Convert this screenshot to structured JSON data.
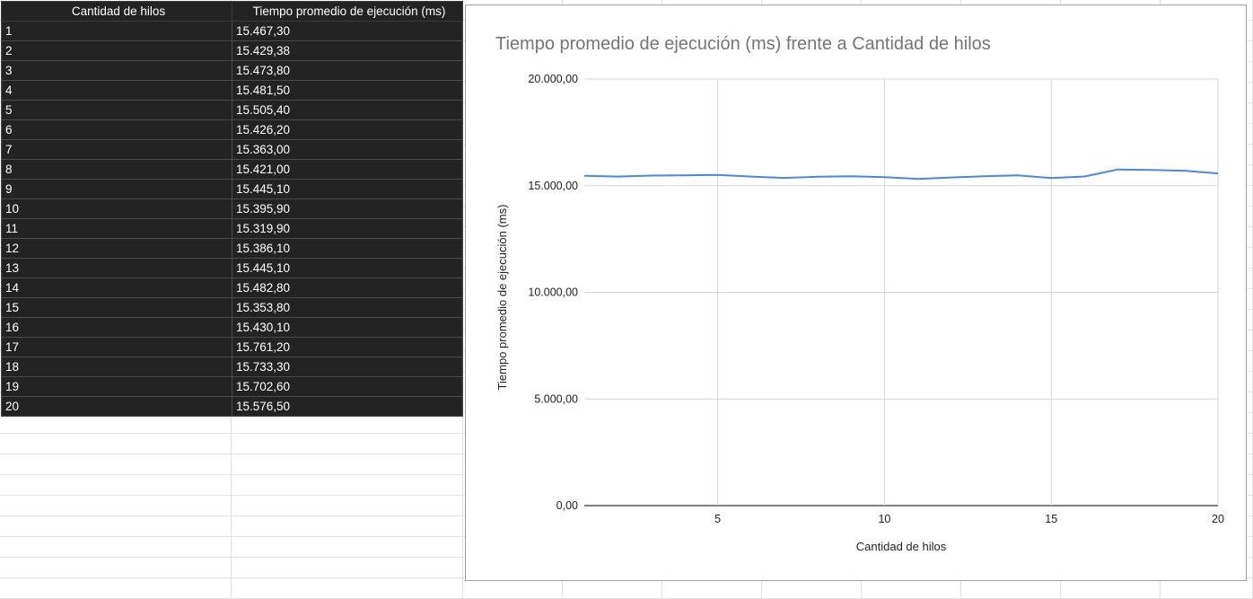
{
  "table": {
    "headers": [
      "Cantidad de hilos",
      "Tiempo promedio de ejecución (ms)"
    ],
    "rows": [
      [
        "1",
        "15.467,30"
      ],
      [
        "2",
        "15.429,38"
      ],
      [
        "3",
        "15.473,80"
      ],
      [
        "4",
        "15.481,50"
      ],
      [
        "5",
        "15.505,40"
      ],
      [
        "6",
        "15.426,20"
      ],
      [
        "7",
        "15.363,00"
      ],
      [
        "8",
        "15.421,00"
      ],
      [
        "9",
        "15.445,10"
      ],
      [
        "10",
        "15.395,90"
      ],
      [
        "11",
        "15.319,90"
      ],
      [
        "12",
        "15.386,10"
      ],
      [
        "13",
        "15.445,10"
      ],
      [
        "14",
        "15.482,80"
      ],
      [
        "15",
        "15.353,80"
      ],
      [
        "16",
        "15.430,10"
      ],
      [
        "17",
        "15.761,20"
      ],
      [
        "18",
        "15.733,30"
      ],
      [
        "19",
        "15.702,60"
      ],
      [
        "20",
        "15.576,50"
      ]
    ]
  },
  "chart_data": {
    "type": "line",
    "title": "Tiempo promedio de ejecución (ms) frente a Cantidad de hilos",
    "xlabel": "Cantidad de hilos",
    "ylabel": "Tiempo promedio de ejecución (ms)",
    "x": [
      1,
      2,
      3,
      4,
      5,
      6,
      7,
      8,
      9,
      10,
      11,
      12,
      13,
      14,
      15,
      16,
      17,
      18,
      19,
      20
    ],
    "series": [
      {
        "values": [
          15467.3,
          15429.38,
          15473.8,
          15481.5,
          15505.4,
          15426.2,
          15363.0,
          15421.0,
          15445.1,
          15395.9,
          15319.9,
          15386.1,
          15445.1,
          15482.8,
          15353.8,
          15430.1,
          15761.2,
          15733.3,
          15702.6,
          15576.5
        ],
        "color": "#4a86e8"
      }
    ],
    "xlim": [
      1,
      20
    ],
    "ylim": [
      0,
      20000
    ],
    "xticks": [
      5,
      10,
      15,
      20
    ],
    "xtick_labels": [
      "5",
      "10",
      "15",
      "20"
    ],
    "yticks": [
      0,
      5000,
      10000,
      15000,
      20000
    ],
    "ytick_labels": [
      "0,00",
      "5.000,00",
      "10.000,00",
      "15.000,00",
      "20.000,00"
    ],
    "grid": true,
    "legend": "none"
  }
}
